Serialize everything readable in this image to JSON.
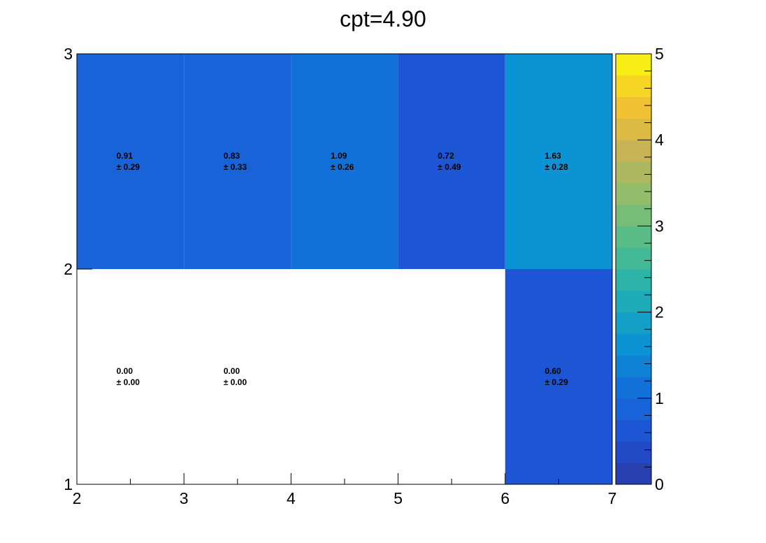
{
  "chart_data": {
    "type": "heatmap",
    "title": "cpt=4.90",
    "xlabel": "",
    "ylabel": "",
    "x_edges": [
      2,
      3,
      4,
      5,
      6,
      7
    ],
    "y_edges": [
      1,
      2,
      3
    ],
    "xlim": [
      2,
      7
    ],
    "ylim": [
      1,
      3
    ],
    "x_ticks": [
      2,
      3,
      4,
      5,
      6,
      7
    ],
    "y_ticks": [
      1,
      2,
      3
    ],
    "z_range": [
      0,
      5
    ],
    "z_ticks": [
      0,
      1,
      2,
      3,
      4,
      5
    ],
    "palette_steps": 20,
    "palette_stops": [
      "#2b3aa6",
      "#1f52d4",
      "#1270d9",
      "#0b96d2",
      "#22b0b2",
      "#4fbc8c",
      "#8fbe6c",
      "#c8b456",
      "#f6c32e",
      "#f9fb0e"
    ],
    "cells": [
      {
        "x": [
          2,
          3
        ],
        "y": [
          2,
          3
        ],
        "value": 0.91,
        "error": 0.29,
        "value_text": "0.91",
        "error_text": "± 0.29"
      },
      {
        "x": [
          3,
          4
        ],
        "y": [
          2,
          3
        ],
        "value": 0.83,
        "error": 0.33,
        "value_text": "0.83",
        "error_text": "± 0.33"
      },
      {
        "x": [
          4,
          5
        ],
        "y": [
          2,
          3
        ],
        "value": 1.09,
        "error": 0.26,
        "value_text": "1.09",
        "error_text": "± 0.26"
      },
      {
        "x": [
          5,
          6
        ],
        "y": [
          2,
          3
        ],
        "value": 0.72,
        "error": 0.49,
        "value_text": "0.72",
        "error_text": "± 0.49"
      },
      {
        "x": [
          6,
          7
        ],
        "y": [
          2,
          3
        ],
        "value": 1.63,
        "error": 0.28,
        "value_text": "1.63",
        "error_text": "± 0.28"
      },
      {
        "x": [
          2,
          3
        ],
        "y": [
          1,
          2
        ],
        "value": 0.0,
        "error": 0.0,
        "value_text": "0.00",
        "error_text": "± 0.00"
      },
      {
        "x": [
          3,
          4
        ],
        "y": [
          1,
          2
        ],
        "value": 0.0,
        "error": 0.0,
        "value_text": "0.00",
        "error_text": "± 0.00"
      },
      {
        "x": [
          6,
          7
        ],
        "y": [
          1,
          2
        ],
        "value": 0.6,
        "error": 0.29,
        "value_text": "0.60",
        "error_text": "± 0.29"
      }
    ]
  }
}
